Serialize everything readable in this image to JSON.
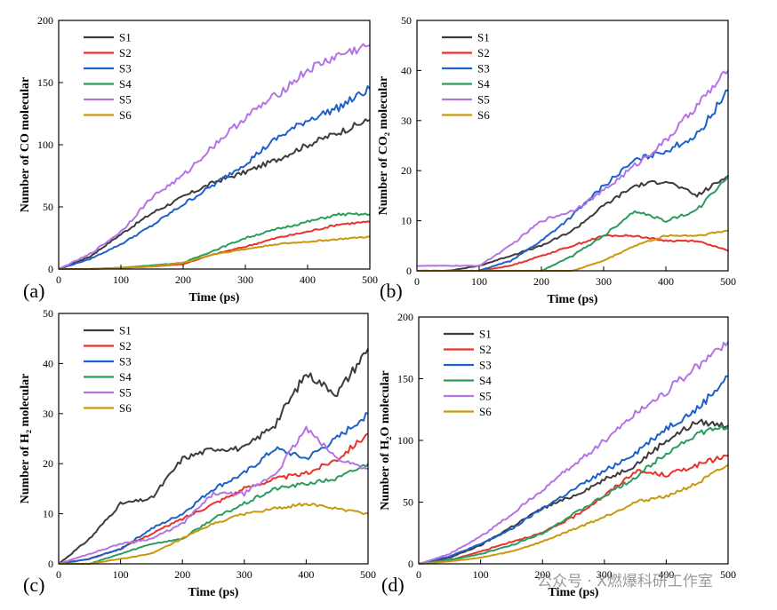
{
  "watermark": "公众号 · X燃爆科研工作室",
  "colors": {
    "S1": "#3c3c3c",
    "S2": "#e8332b",
    "S3": "#1c62c7",
    "S4": "#2a9c5d",
    "S5": "#b574e6",
    "S6": "#c9980e"
  },
  "chart_data": [
    {
      "type": "line",
      "panel_label": "(a)",
      "xlabel": "Time (ps)",
      "ylabel": "Number of CO molecular",
      "xlim": [
        0,
        500
      ],
      "ylim": [
        0,
        200
      ],
      "xticks": [
        0,
        100,
        200,
        300,
        400,
        500
      ],
      "yticks": [
        0,
        50,
        100,
        150,
        200
      ],
      "legend": "top-left",
      "x": [
        0,
        50,
        100,
        150,
        200,
        250,
        300,
        350,
        400,
        450,
        500
      ],
      "series": [
        {
          "name": "S1",
          "values": [
            0,
            10,
            28,
            45,
            58,
            70,
            78,
            88,
            100,
            110,
            120
          ]
        },
        {
          "name": "S2",
          "values": [
            0,
            0,
            1,
            2,
            4,
            12,
            18,
            25,
            30,
            36,
            38
          ]
        },
        {
          "name": "S3",
          "values": [
            0,
            8,
            20,
            35,
            52,
            68,
            85,
            105,
            120,
            130,
            145
          ]
        },
        {
          "name": "S4",
          "values": [
            0,
            0,
            1,
            3,
            5,
            15,
            25,
            32,
            38,
            44,
            44
          ]
        },
        {
          "name": "S5",
          "values": [
            0,
            12,
            30,
            58,
            75,
            100,
            122,
            140,
            160,
            172,
            180
          ]
        },
        {
          "name": "S6",
          "values": [
            0,
            0,
            1,
            2,
            5,
            12,
            16,
            20,
            22,
            24,
            26
          ]
        }
      ]
    },
    {
      "type": "line",
      "panel_label": "(b)",
      "xlabel": "Time (ps)",
      "ylabel": "Number of CO₂ molecular",
      "xlim": [
        0,
        500
      ],
      "ylim": [
        0,
        50
      ],
      "xticks": [
        0,
        100,
        200,
        300,
        400,
        500
      ],
      "yticks": [
        0,
        10,
        20,
        30,
        40,
        50
      ],
      "legend": "top-left",
      "x": [
        0,
        50,
        100,
        150,
        200,
        250,
        300,
        350,
        400,
        450,
        500
      ],
      "series": [
        {
          "name": "S1",
          "values": [
            0,
            0,
            1,
            3,
            5,
            8,
            13,
            17,
            18,
            15,
            19
          ]
        },
        {
          "name": "S2",
          "values": [
            0,
            0,
            0,
            1,
            3,
            5,
            7,
            7,
            6,
            6,
            4
          ]
        },
        {
          "name": "S3",
          "values": [
            0,
            0,
            0,
            2,
            6,
            11,
            17,
            22,
            24,
            27,
            36
          ]
        },
        {
          "name": "S4",
          "values": [
            0,
            0,
            0,
            0,
            0,
            3,
            7,
            12,
            10,
            12,
            19
          ]
        },
        {
          "name": "S5",
          "values": [
            1,
            1,
            1,
            5,
            10,
            12,
            16,
            21,
            26,
            33,
            40
          ]
        },
        {
          "name": "S6",
          "values": [
            0,
            0,
            0,
            0,
            0,
            0,
            2,
            5,
            7,
            7,
            8
          ]
        }
      ]
    },
    {
      "type": "line",
      "panel_label": "(c)",
      "xlabel": "Time (ps)",
      "ylabel": "Number of H₂ molecular",
      "xlim": [
        0,
        500
      ],
      "ylim": [
        0,
        50
      ],
      "xticks": [
        0,
        100,
        200,
        300,
        400,
        500
      ],
      "yticks": [
        0,
        10,
        20,
        30,
        40,
        50
      ],
      "legend": "top-left",
      "x": [
        0,
        50,
        100,
        150,
        200,
        250,
        300,
        350,
        400,
        450,
        500
      ],
      "series": [
        {
          "name": "S1",
          "values": [
            0,
            5,
            12,
            13,
            21,
            23,
            23,
            28,
            38,
            34,
            43
          ]
        },
        {
          "name": "S2",
          "values": [
            0,
            1,
            3,
            6,
            9,
            12,
            15,
            17,
            18,
            21,
            26
          ]
        },
        {
          "name": "S3",
          "values": [
            0,
            1,
            3,
            7,
            10,
            15,
            18,
            23,
            21,
            25,
            30
          ]
        },
        {
          "name": "S4",
          "values": [
            0,
            0,
            2,
            4,
            5,
            9,
            12,
            15,
            16,
            17,
            20
          ]
        },
        {
          "name": "S5",
          "values": [
            0,
            2,
            4,
            5,
            8,
            14,
            14,
            18,
            27,
            21,
            19
          ]
        },
        {
          "name": "S6",
          "values": [
            0,
            0,
            1,
            2,
            5,
            8,
            10,
            11,
            12,
            11,
            10
          ]
        }
      ]
    },
    {
      "type": "line",
      "panel_label": "(d)",
      "xlabel": "Time (ps)",
      "ylabel": "Number of H₂O molecular",
      "xlim": [
        0,
        500
      ],
      "ylim": [
        0,
        200
      ],
      "xticks": [
        0,
        100,
        200,
        300,
        400,
        500
      ],
      "yticks": [
        0,
        50,
        100,
        150,
        200
      ],
      "legend": "top-left",
      "x": [
        0,
        50,
        100,
        150,
        200,
        250,
        300,
        350,
        400,
        450,
        500
      ],
      "series": [
        {
          "name": "S1",
          "values": [
            0,
            5,
            15,
            30,
            45,
            55,
            68,
            80,
            100,
            115,
            112
          ]
        },
        {
          "name": "S2",
          "values": [
            0,
            3,
            10,
            18,
            25,
            38,
            55,
            75,
            72,
            80,
            88
          ]
        },
        {
          "name": "S3",
          "values": [
            0,
            6,
            16,
            28,
            45,
            60,
            75,
            90,
            110,
            125,
            152
          ]
        },
        {
          "name": "S4",
          "values": [
            0,
            3,
            8,
            15,
            25,
            40,
            55,
            70,
            90,
            105,
            112
          ]
        },
        {
          "name": "S5",
          "values": [
            0,
            8,
            22,
            40,
            60,
            80,
            100,
            122,
            140,
            160,
            180
          ]
        },
        {
          "name": "S6",
          "values": [
            0,
            2,
            5,
            10,
            18,
            28,
            38,
            50,
            55,
            65,
            80
          ]
        }
      ]
    }
  ]
}
